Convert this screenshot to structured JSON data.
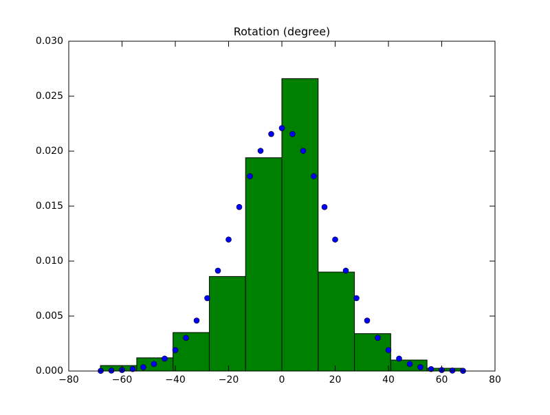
{
  "chart_data": [
    {
      "type": "histogram",
      "title": "Rotation (degree)",
      "bins": [
        -68.1,
        -54.48,
        -40.86,
        -27.24,
        -13.62,
        0,
        13.62,
        27.24,
        40.86,
        54.48,
        68.1
      ],
      "values": [
        0.0005,
        0.0012,
        0.0035,
        0.0086,
        0.0194,
        0.0266,
        0.009,
        0.0034,
        0.001,
        0.00025
      ],
      "color": "#008000",
      "xlim": [
        -80,
        80
      ],
      "xticks": [
        {
          "value": -80,
          "label": "−80"
        },
        {
          "value": -60,
          "label": "−60"
        },
        {
          "value": -40,
          "label": "−40"
        },
        {
          "value": -20,
          "label": "−20"
        },
        0,
        20,
        40,
        60,
        80
      ],
      "ylim": [
        0,
        0.03
      ],
      "yticks": [
        {
          "value": 0,
          "label": "0.000"
        },
        {
          "value": 0.005,
          "label": "0.005"
        },
        {
          "value": 0.01,
          "label": "0.010"
        },
        {
          "value": 0.015,
          "label": "0.015"
        },
        {
          "value": 0.02,
          "label": "0.020"
        },
        {
          "value": 0.025,
          "label": "0.025"
        },
        {
          "value": 0.03,
          "label": "0.030"
        }
      ]
    },
    {
      "type": "scatter",
      "color": "#0000ff",
      "x": [
        -68,
        -64,
        -60,
        -56,
        -52,
        -48,
        -44,
        -40,
        -36,
        -32,
        -28,
        -24,
        -20,
        -16,
        -12,
        -8,
        -4,
        0,
        4,
        8,
        12,
        16,
        20,
        24,
        28,
        32,
        36,
        40,
        44,
        48,
        52,
        56,
        60,
        64,
        68
      ],
      "y": [
        1.8e-05,
        4.1e-05,
        8.8e-05,
        0.00018,
        0.00035,
        0.00064,
        0.00113,
        0.0019,
        0.00302,
        0.00459,
        0.00663,
        0.00913,
        0.01196,
        0.01492,
        0.01772,
        0.02003,
        0.02156,
        0.0221,
        0.02156,
        0.02003,
        0.01772,
        0.01492,
        0.01196,
        0.00913,
        0.00663,
        0.00459,
        0.00302,
        0.0019,
        0.00113,
        0.00064,
        0.00035,
        0.00018,
        8.8e-05,
        4.1e-05,
        1.8e-05
      ]
    }
  ]
}
